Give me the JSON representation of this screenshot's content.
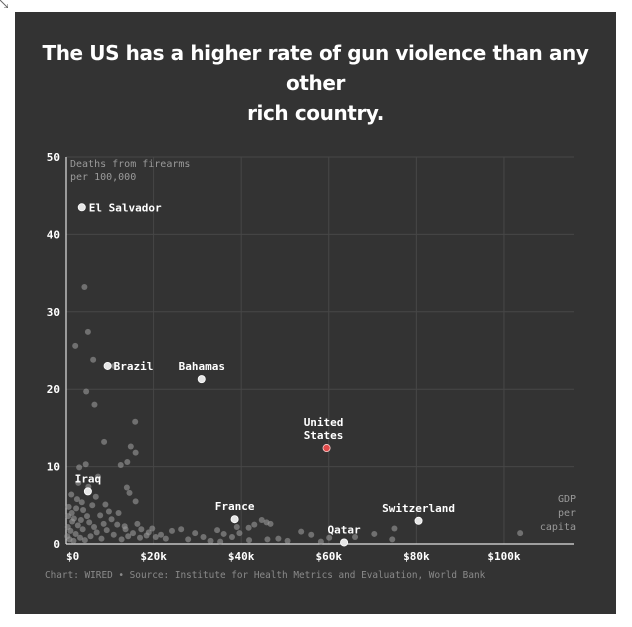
{
  "header": {
    "title_line1": "The US has a higher rate of gun violence than any other",
    "title_line2": "rich country."
  },
  "footer": {
    "source": "Chart: WIRED • Source: Institute for Health Metrics and Evaluation, World Bank"
  },
  "colors": {
    "background": "#333333",
    "point": "#9a9a9a",
    "labeled_point": "#e6e6e6",
    "highlight": "#e04a4a",
    "text": "#ffffff",
    "muted": "#9a9a9a",
    "grid": "#474747"
  },
  "chart_data": {
    "type": "scatter",
    "ylabel_line1": "Deaths from firearms",
    "ylabel_line2": "per 100,000",
    "xlabel": [
      "GDP",
      "per",
      "capita"
    ],
    "xlim": [
      0,
      116000
    ],
    "ylim": [
      0,
      50
    ],
    "x_ticks": [
      {
        "value": 0,
        "label": "$0"
      },
      {
        "value": 20000,
        "label": "$20k"
      },
      {
        "value": 40000,
        "label": "$40k"
      },
      {
        "value": 60000,
        "label": "$60k"
      },
      {
        "value": 80000,
        "label": "$80k"
      },
      {
        "value": 100000,
        "label": "$100k"
      }
    ],
    "y_ticks": [
      {
        "value": 0,
        "label": "0"
      },
      {
        "value": 10,
        "label": "10"
      },
      {
        "value": 20,
        "label": "20"
      },
      {
        "value": 30,
        "label": "30"
      },
      {
        "value": 40,
        "label": "40"
      },
      {
        "value": 50,
        "label": "50"
      }
    ],
    "grid": true,
    "labeled_points": [
      {
        "name": "El Salvador",
        "x": 3600,
        "y": 43.5,
        "highlight": false
      },
      {
        "name": "Brazil",
        "x": 9500,
        "y": 23.0,
        "highlight": false
      },
      {
        "name": "Bahamas",
        "x": 31000,
        "y": 21.3,
        "highlight": false
      },
      {
        "name": "United States",
        "x": 59500,
        "y": 12.4,
        "highlight": true
      },
      {
        "name": "Iraq",
        "x": 5000,
        "y": 6.8,
        "highlight": false
      },
      {
        "name": "France",
        "x": 38500,
        "y": 3.2,
        "highlight": false
      },
      {
        "name": "Qatar",
        "x": 63500,
        "y": 0.2,
        "highlight": false
      },
      {
        "name": "Switzerland",
        "x": 80500,
        "y": 3.0,
        "highlight": false
      }
    ],
    "points": [
      [
        4200,
        33.2
      ],
      [
        5000,
        27.4
      ],
      [
        2100,
        25.6
      ],
      [
        6200,
        23.8
      ],
      [
        11000,
        23.0
      ],
      [
        4600,
        19.7
      ],
      [
        6500,
        18.0
      ],
      [
        15800,
        15.8
      ],
      [
        8700,
        13.2
      ],
      [
        14800,
        12.6
      ],
      [
        15900,
        11.8
      ],
      [
        12500,
        10.2
      ],
      [
        14000,
        10.6
      ],
      [
        4500,
        10.3
      ],
      [
        3000,
        9.9
      ],
      [
        7300,
        8.7
      ],
      [
        2800,
        7.9
      ],
      [
        13900,
        7.3
      ],
      [
        14500,
        6.6
      ],
      [
        6800,
        6.1
      ],
      [
        1200,
        6.4
      ],
      [
        3600,
        5.4
      ],
      [
        6000,
        5.0
      ],
      [
        15900,
        5.5
      ],
      [
        2300,
        4.6
      ],
      [
        9800,
        4.2
      ],
      [
        1300,
        4.0
      ],
      [
        500,
        3.6
      ],
      [
        1800,
        3.3
      ],
      [
        3400,
        3.1
      ],
      [
        5300,
        2.8
      ],
      [
        8600,
        2.6
      ],
      [
        11700,
        2.5
      ],
      [
        13400,
        2.3
      ],
      [
        17200,
        1.9
      ],
      [
        19700,
        2.0
      ],
      [
        24200,
        1.7
      ],
      [
        29500,
        1.4
      ],
      [
        36000,
        1.3
      ],
      [
        43000,
        2.5
      ],
      [
        44700,
        3.1
      ],
      [
        45800,
        2.8
      ],
      [
        46700,
        2.6
      ],
      [
        41700,
        2.1
      ],
      [
        39600,
        1.4
      ],
      [
        37900,
        0.9
      ],
      [
        46000,
        0.6
      ],
      [
        48500,
        0.7
      ],
      [
        53700,
        1.6
      ],
      [
        56000,
        1.2
      ],
      [
        60100,
        0.8
      ],
      [
        66000,
        0.9
      ],
      [
        70400,
        1.3
      ],
      [
        75000,
        2.0
      ],
      [
        74500,
        0.6
      ],
      [
        103700,
        1.4
      ],
      [
        58200,
        0.3
      ],
      [
        50600,
        0.4
      ],
      [
        41800,
        0.5
      ],
      [
        33000,
        0.4
      ],
      [
        27900,
        0.6
      ],
      [
        22800,
        0.7
      ],
      [
        20500,
        0.9
      ],
      [
        18400,
        1.1
      ],
      [
        16900,
        0.8
      ],
      [
        15300,
        1.4
      ],
      [
        14200,
        1.0
      ],
      [
        12700,
        0.6
      ],
      [
        10900,
        1.2
      ],
      [
        9300,
        1.8
      ],
      [
        8100,
        0.7
      ],
      [
        7000,
        1.5
      ],
      [
        6400,
        2.2
      ],
      [
        5600,
        1.0
      ],
      [
        4800,
        3.6
      ],
      [
        4300,
        0.5
      ],
      [
        3800,
        1.9
      ],
      [
        3200,
        0.8
      ],
      [
        2700,
        2.4
      ],
      [
        2200,
        1.3
      ],
      [
        1700,
        0.4
      ],
      [
        1400,
        2.9
      ],
      [
        1000,
        1.7
      ],
      [
        800,
        0.6
      ],
      [
        600,
        4.8
      ],
      [
        400,
        2.2
      ],
      [
        300,
        1.0
      ],
      [
        2500,
        5.8
      ],
      [
        3900,
        4.4
      ],
      [
        5100,
        7.4
      ],
      [
        7800,
        3.7
      ],
      [
        9000,
        5.1
      ],
      [
        10400,
        3.2
      ],
      [
        12000,
        4.0
      ],
      [
        13600,
        1.9
      ],
      [
        16300,
        2.6
      ],
      [
        18900,
        1.5
      ],
      [
        21700,
        1.2
      ],
      [
        26300,
        1.9
      ],
      [
        31400,
        0.9
      ],
      [
        35200,
        0.3
      ],
      [
        39000,
        2.2
      ],
      [
        34500,
        1.8
      ]
    ]
  }
}
